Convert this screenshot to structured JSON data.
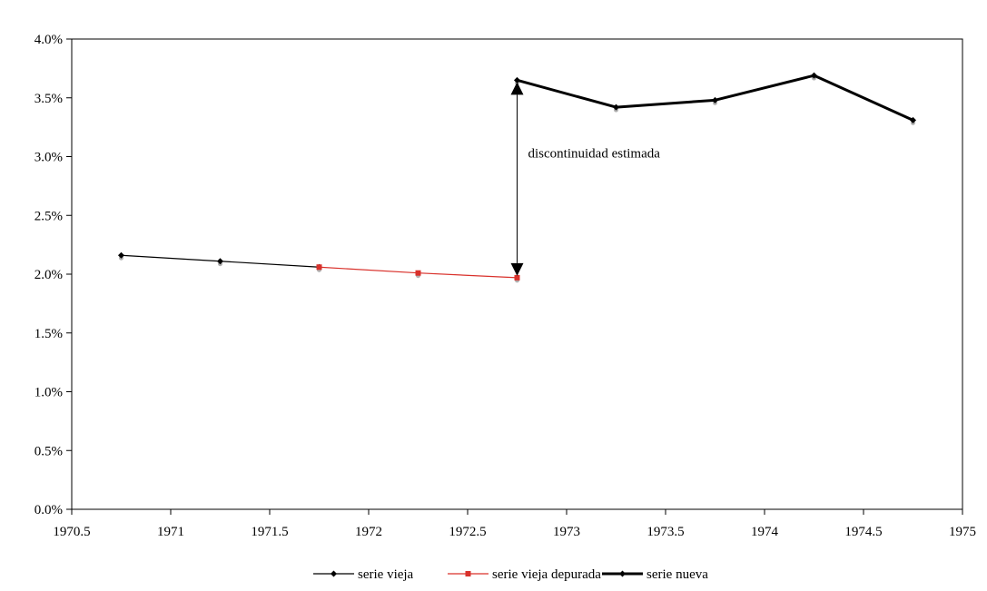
{
  "chart_data": {
    "type": "line",
    "xlim": [
      1970.5,
      1975
    ],
    "ylim": [
      0.0,
      4.0
    ],
    "x_ticks": [
      1970.5,
      1971,
      1971.5,
      1972,
      1972.5,
      1973,
      1973.5,
      1974,
      1974.5,
      1975
    ],
    "x_tick_labels": [
      "1970.5",
      "1971",
      "1971.5",
      "1972",
      "1972.5",
      "1973",
      "1973.5",
      "1974",
      "1974.5",
      "1975"
    ],
    "y_ticks": [
      0.0,
      0.5,
      1.0,
      1.5,
      2.0,
      2.5,
      3.0,
      3.5,
      4.0
    ],
    "y_tick_labels": [
      "0.0%",
      "0.5%",
      "1.0%",
      "1.5%",
      "2.0%",
      "2.5%",
      "3.0%",
      "3.5%",
      "4.0%"
    ],
    "grid": false,
    "legend_position": "bottom",
    "series": [
      {
        "name": "serie vieja",
        "color": "#000000",
        "marker": "diamond",
        "x": [
          1970.75,
          1971.25,
          1971.75
        ],
        "y": [
          2.16,
          2.11,
          2.06
        ]
      },
      {
        "name": "serie vieja depurada",
        "color": "#d9312b",
        "marker": "square",
        "x": [
          1971.75,
          1972.25,
          1972.75
        ],
        "y": [
          2.06,
          2.01,
          1.97
        ]
      },
      {
        "name": "serie nueva",
        "color": "#000000",
        "marker": "diamond",
        "x": [
          1972.75,
          1973.25,
          1973.75,
          1974.25,
          1974.75
        ],
        "y": [
          3.65,
          3.42,
          3.48,
          3.69,
          3.31
        ]
      }
    ],
    "annotation": {
      "text": "discontinuidad estimada",
      "x": 1972.75,
      "y_from": 1.97,
      "y_to": 3.65
    }
  }
}
